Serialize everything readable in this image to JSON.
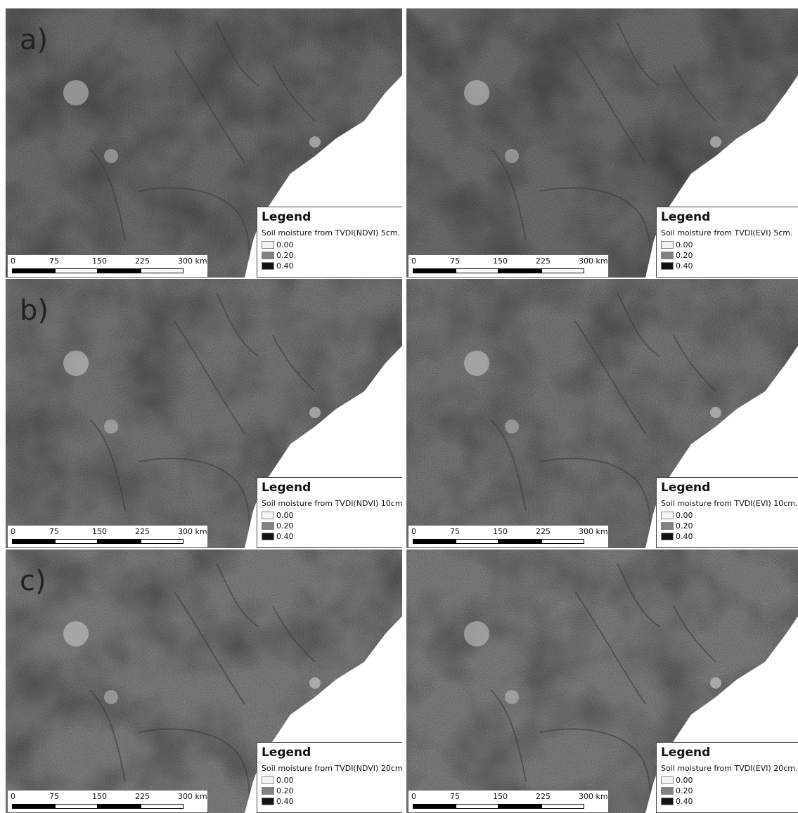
{
  "panels": [
    {
      "label": "a)",
      "legend": {
        "title": "Legend",
        "subtitle": "Soil moisture from TVDI(NDVI) 5cm.",
        "items": [
          {
            "label": "0.00",
            "color": "#f4f4f4"
          },
          {
            "label": "0.20",
            "color": "#808080"
          },
          {
            "label": "0.40",
            "color": "#111111"
          }
        ]
      },
      "scale_bar": [
        "0",
        "75",
        "150",
        "225",
        "300 km"
      ]
    },
    {
      "legend": {
        "title": "Legend",
        "subtitle": "Soil moisture from TVDI(EVI) 5cm.",
        "items": [
          {
            "label": "0.00",
            "color": "#f4f4f4"
          },
          {
            "label": "0.20",
            "color": "#808080"
          },
          {
            "label": "0.40",
            "color": "#111111"
          }
        ]
      },
      "scale_bar": [
        "0",
        "75",
        "150",
        "225",
        "300 km"
      ]
    },
    {
      "label": "b)",
      "legend": {
        "title": "Legend",
        "subtitle": "Soil moisture from TVDI(NDVI) 10cm.",
        "items": [
          {
            "label": "0.00",
            "color": "#f4f4f4"
          },
          {
            "label": "0.20",
            "color": "#808080"
          },
          {
            "label": "0.40",
            "color": "#111111"
          }
        ]
      },
      "scale_bar": [
        "0",
        "75",
        "150",
        "225",
        "300 km"
      ]
    },
    {
      "legend": {
        "title": "Legend",
        "subtitle": "Soil moisture from TVDI(EVI) 10cm.",
        "items": [
          {
            "label": "0.00",
            "color": "#f4f4f4"
          },
          {
            "label": "0.20",
            "color": "#808080"
          },
          {
            "label": "0.40",
            "color": "#111111"
          }
        ]
      },
      "scale_bar": [
        "0",
        "75",
        "150",
        "225",
        "300 km"
      ]
    },
    {
      "label": "c)",
      "legend": {
        "title": "Legend",
        "subtitle": "Soil moisture from TVDI(NDVI) 20cm.",
        "items": [
          {
            "label": "0.00",
            "color": "#f4f4f4"
          },
          {
            "label": "0.20",
            "color": "#808080"
          },
          {
            "label": "0.40",
            "color": "#111111"
          }
        ]
      },
      "scale_bar": [
        "0",
        "75",
        "150",
        "225",
        "300 km"
      ]
    },
    {
      "legend": {
        "title": "Legend",
        "subtitle": "Soil moisture from TVDI(EVI) 20cm.",
        "items": [
          {
            "label": "0.00",
            "color": "#f4f4f4"
          },
          {
            "label": "0.20",
            "color": "#808080"
          },
          {
            "label": "0.40",
            "color": "#111111"
          }
        ]
      },
      "scale_bar": [
        "0",
        "75",
        "150",
        "225",
        "300 km"
      ]
    }
  ]
}
